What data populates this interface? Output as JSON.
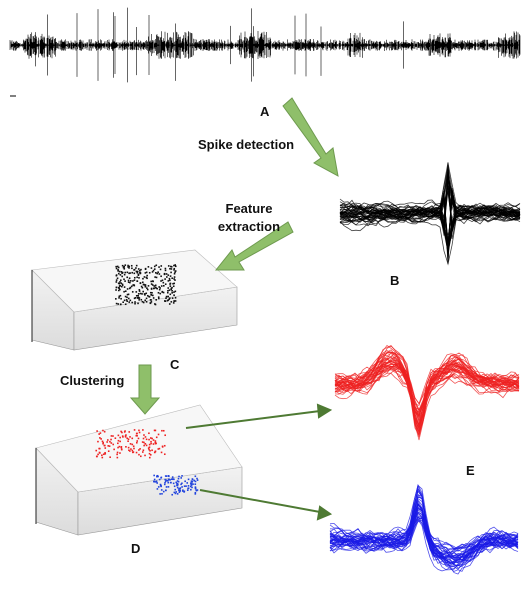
{
  "labels": {
    "a": "A",
    "b": "B",
    "c": "C",
    "d": "D",
    "e": "E"
  },
  "steps": {
    "spike_detection": "Spike detection",
    "feature_extraction": "Feature extraction",
    "clustering": "Clustering"
  }
}
